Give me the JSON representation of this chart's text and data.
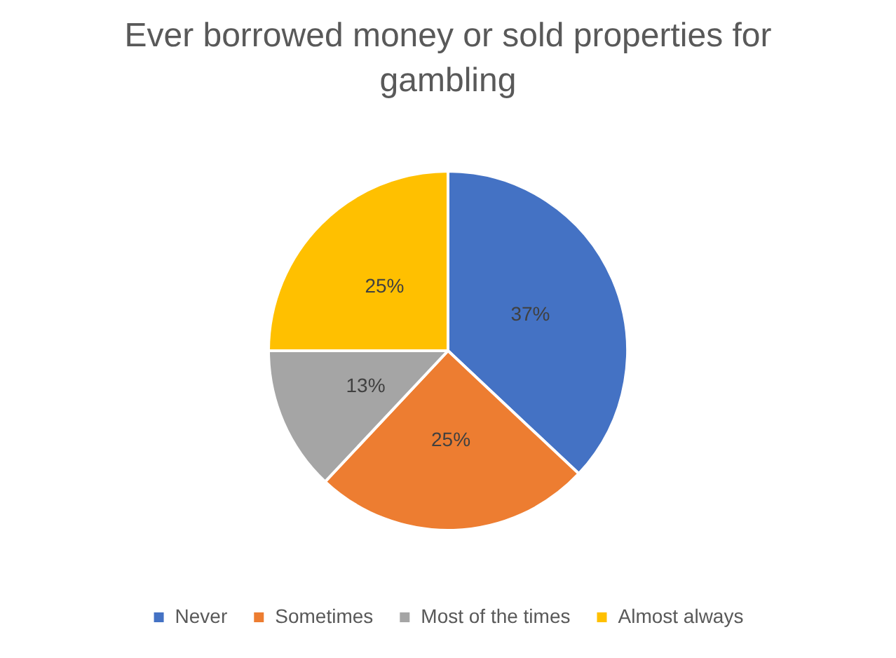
{
  "chart_data": {
    "type": "pie",
    "title": "Ever borrowed money or sold properties for gambling",
    "categories": [
      "Never",
      "Sometimes",
      "Most of the times",
      "Almost always"
    ],
    "values": [
      37,
      25,
      13,
      25
    ],
    "colors": [
      "#4472c4",
      "#ed7d31",
      "#a5a5a5",
      "#ffc000"
    ],
    "value_labels": [
      "37%",
      "25%",
      "13%",
      "25%"
    ],
    "legend": "bottom"
  }
}
